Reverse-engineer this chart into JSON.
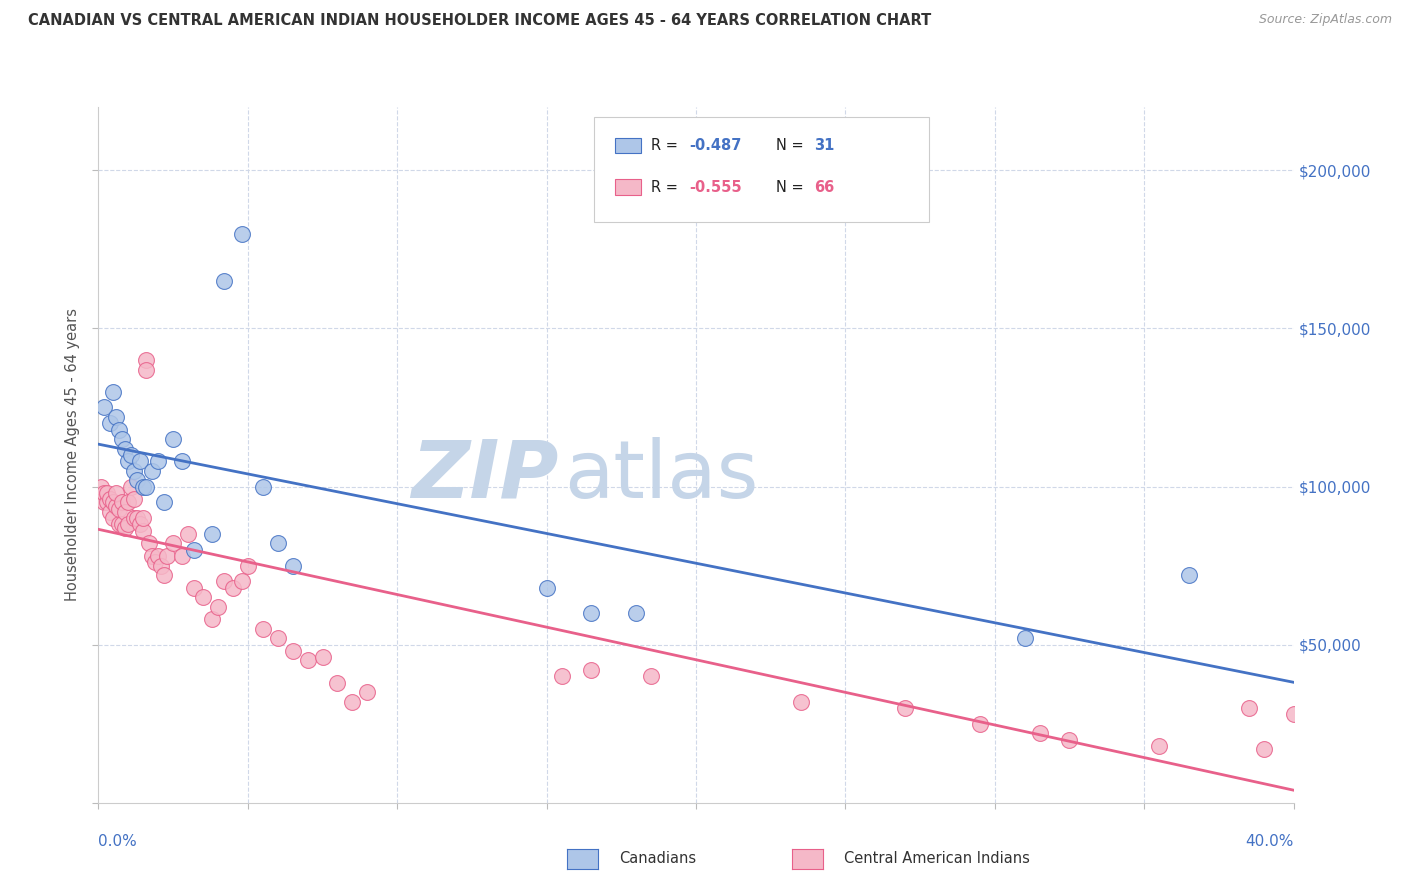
{
  "title": "CANADIAN VS CENTRAL AMERICAN INDIAN HOUSEHOLDER INCOME AGES 45 - 64 YEARS CORRELATION CHART",
  "source": "Source: ZipAtlas.com",
  "ylabel": "Householder Income Ages 45 - 64 years",
  "xlim": [
    0.0,
    0.4
  ],
  "ylim": [
    0,
    220000
  ],
  "legend_r_canadian": "-0.487",
  "legend_n_canadian": "31",
  "legend_r_central": "-0.555",
  "legend_n_central": "66",
  "canadian_color": "#aec6e8",
  "central_color": "#f5b8c8",
  "canadian_line_color": "#4472c4",
  "central_line_color": "#e8608a",
  "watermark_zip_color": "#c5d5e8",
  "watermark_atlas_color": "#c5d5e8",
  "background_color": "#ffffff",
  "grid_color": "#d0d8e8",
  "canadians_scatter_x": [
    0.002,
    0.004,
    0.005,
    0.006,
    0.007,
    0.008,
    0.009,
    0.01,
    0.011,
    0.012,
    0.013,
    0.014,
    0.015,
    0.016,
    0.018,
    0.02,
    0.022,
    0.025,
    0.028,
    0.032,
    0.038,
    0.042,
    0.048,
    0.055,
    0.06,
    0.065,
    0.15,
    0.165,
    0.18,
    0.31,
    0.365
  ],
  "canadians_scatter_y": [
    125000,
    120000,
    130000,
    122000,
    118000,
    115000,
    112000,
    108000,
    110000,
    105000,
    102000,
    108000,
    100000,
    100000,
    105000,
    108000,
    95000,
    115000,
    108000,
    80000,
    85000,
    165000,
    180000,
    100000,
    82000,
    75000,
    68000,
    60000,
    60000,
    52000,
    72000
  ],
  "central_scatter_x": [
    0.001,
    0.002,
    0.002,
    0.003,
    0.003,
    0.004,
    0.004,
    0.005,
    0.005,
    0.006,
    0.006,
    0.007,
    0.007,
    0.008,
    0.008,
    0.009,
    0.009,
    0.01,
    0.01,
    0.011,
    0.012,
    0.012,
    0.013,
    0.014,
    0.015,
    0.015,
    0.016,
    0.016,
    0.017,
    0.018,
    0.019,
    0.02,
    0.021,
    0.022,
    0.023,
    0.025,
    0.028,
    0.03,
    0.032,
    0.035,
    0.038,
    0.04,
    0.042,
    0.045,
    0.048,
    0.05,
    0.055,
    0.06,
    0.065,
    0.07,
    0.075,
    0.08,
    0.085,
    0.09,
    0.155,
    0.165,
    0.185,
    0.235,
    0.27,
    0.295,
    0.315,
    0.325,
    0.355,
    0.385,
    0.39,
    0.4
  ],
  "central_scatter_y": [
    100000,
    95000,
    98000,
    95000,
    98000,
    92000,
    96000,
    90000,
    95000,
    94000,
    98000,
    88000,
    93000,
    88000,
    95000,
    87000,
    92000,
    88000,
    95000,
    100000,
    90000,
    96000,
    90000,
    88000,
    86000,
    90000,
    140000,
    137000,
    82000,
    78000,
    76000,
    78000,
    75000,
    72000,
    78000,
    82000,
    78000,
    85000,
    68000,
    65000,
    58000,
    62000,
    70000,
    68000,
    70000,
    75000,
    55000,
    52000,
    48000,
    45000,
    46000,
    38000,
    32000,
    35000,
    40000,
    42000,
    40000,
    32000,
    30000,
    25000,
    22000,
    20000,
    18000,
    30000,
    17000,
    28000
  ]
}
